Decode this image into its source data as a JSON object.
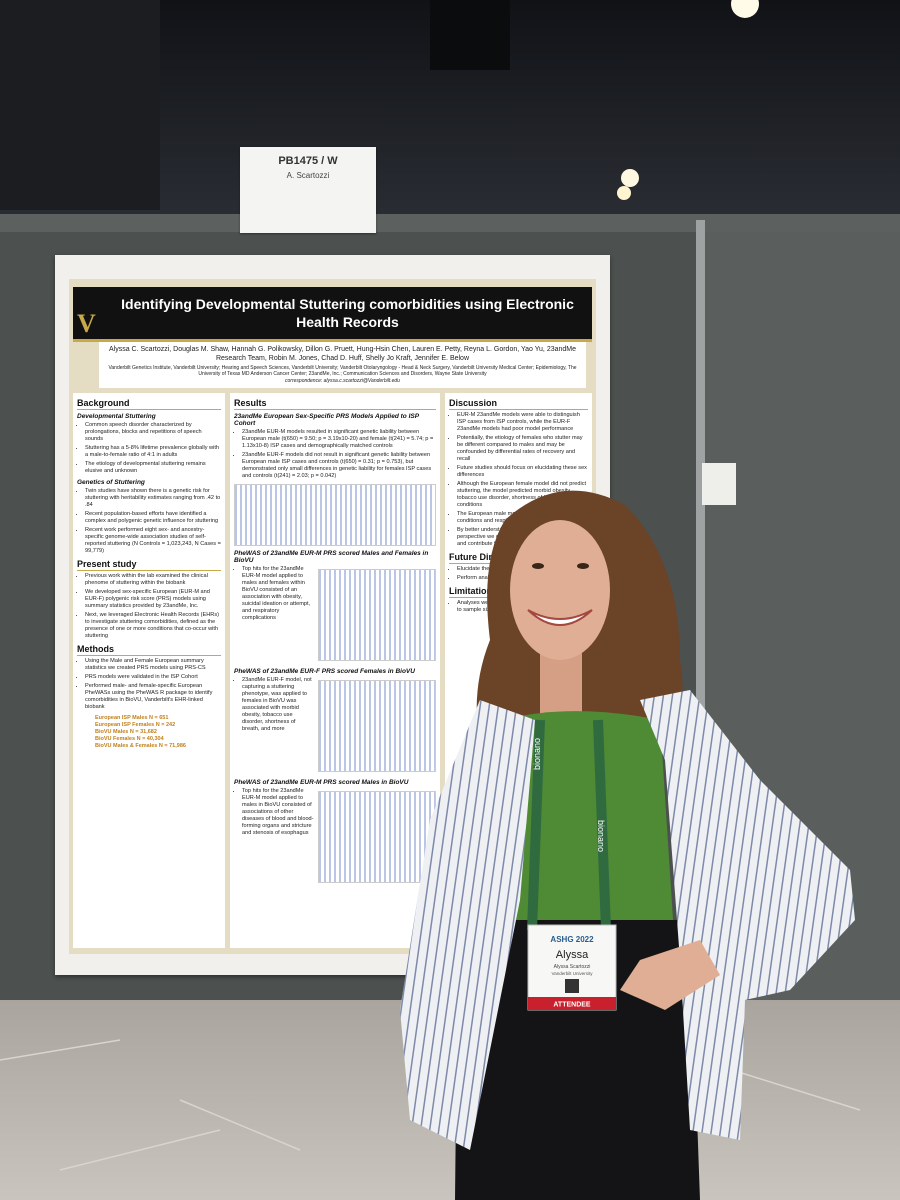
{
  "sign": {
    "code": "PB1475 / W",
    "name": "A. Scartozzi"
  },
  "poster": {
    "title": "Identifying Developmental Stuttering comorbidities using Electronic Health Records",
    "authors": "Alyssa C. Scartozzi, Douglas M. Shaw, Hannah G. Polikowsky, Dillon G. Pruett, Hung-Hsin Chen, Lauren E. Petty, Reyna L. Gordon, Yao Yu, 23andMe Research Team, Robin M. Jones, Chad D. Huff, Shelly Jo Kraft, Jennifer E. Below",
    "affiliations": "Vanderbilt Genetics Institute, Vanderbilt University; Hearing and Speech Sciences, Vanderbilt University; Vanderbilt Otolaryngology - Head & Neck Surgery, Vanderbilt University Medical Center; Epidemiology, The University of Texas MD Anderson Cancer Center; 23andMe, Inc.; Communication Sciences and Disorders, Wayne State University",
    "correspondence": "correspondence: alyssa.c.scartozzi@Vanderbilt.edu",
    "columns": [
      [
        {
          "heading": "Background",
          "sub": "Developmental Stuttering",
          "bullets": [
            "Common speech disorder characterized by prolongations, blocks and repetitions of speech sounds",
            "Stuttering has a 5-8% lifetime prevalence globally with a male-to-female ratio of 4:1 in adults",
            "The etiology of developmental stuttering remains elusive and unknown"
          ]
        },
        {
          "sub": "Genetics of Stuttering",
          "bullets": [
            "Twin studies have shown there is a genetic risk for stuttering with heritability estimates ranging from .42 to .84",
            "Recent population-based efforts have identified a complex and polygenic genetic influence for stuttering",
            "Recent work performed eight sex- and ancestry-specific genome-wide association studies of self-reported stuttering (N Controls = 1,023,243, N Cases = 99,779)"
          ]
        },
        {
          "heading": "Present study",
          "bullets": [
            "Previous work within the lab examined the clinical phenome of stuttering within the biobank",
            "We developed sex-specific European (EUR-M and EUR-F) polygenic risk score (PRS) models using summary statistics provided by 23andMe, Inc.",
            "Next, we leveraged Electronic Health Records (EHRs) to investigate stuttering comorbidities, defined as the presence of one or more conditions that co-occur with stuttering"
          ]
        },
        {
          "heading": "Methods",
          "bullets": [
            "Using the Male and Female European summary statistics we created PRS models using PRS-CS",
            "PRS models were validated in the ISP Cohort",
            "Performed male- and female-specific European PheWASs using the PheWAS R package to identify comorbidities in BioVU, Vanderbilt's EHR-linked biobank"
          ],
          "notes": [
            "European ISP Males N = 651",
            "European ISP Females N = 242",
            "BioVU Males N = 31,682",
            "BioVU Females N = 40,304",
            "BioVU Males & Females N = 71,986"
          ]
        }
      ],
      [
        {
          "heading": "Results",
          "sub": "23andMe European Sex-Specific PRS Models Applied to ISP Cohort",
          "bullets": [
            "23andMe EUR-M models resulted in significant genetic liability between European male (t(650) = 9.50; p = 3.19x10-20) and female (t(241) = 5.74; p = 1.13x10-8) ISP cases and demographically matched controls",
            "23andMe EUR-F models did not result in significant genetic liability between European male ISP cases and controls (t(650) = 0.31; p = 0.753), but demonstrated only small differences in genetic liability for females ISP cases and controls (t(241) = 2.03; p = 0.042)"
          ]
        },
        {
          "sub": "PheWAS of 23andMe EUR-M PRS scored Males and Females in BioVU",
          "bullets": [
            "Top hits for the 23andMe EUR-M model applied to males and females within BioVU consisted of an association with obesity, suicidal ideation or attempt, and respiratory complications"
          ]
        },
        {
          "sub": "PheWAS of 23andMe EUR-F PRS scored Females in BioVU",
          "bullets": [
            "23andMe EUR-F model, not capturing a stuttering phenotype, was applied to females in BioVU was associated with morbid obesity, tobacco use disorder, shortness of breath, and more"
          ]
        },
        {
          "sub": "PheWAS of 23andMe EUR-M PRS scored Males in BioVU",
          "bullets": [
            "Top hits for the 23andMe EUR-M model applied to males in BioVU consisted of associations of other diseases of blood and blood-forming organs and stricture and stenosis of esophagus"
          ]
        }
      ],
      [
        {
          "heading": "Discussion",
          "bullets": [
            "EUR-M 23andMe models were able to distinguish ISP cases from ISP controls, while the EUR-F 23andMe models had poor model performance",
            "Potentially, the etiology of females who stutter may be different compared to males and may be confounded by differential rates of recovery and recall",
            "Future studies should focus on elucidating these sex differences",
            "Although the European female model did not predict stuttering, the model predicted morbid obesity, tobacco use disorder, shortness of breath and other conditions",
            "The European male model identified comorbid conditions and respiratory complications",
            "By better understanding stuttering from a genetic perspective we can better understand the condition and contribute to future improvements"
          ]
        },
        {
          "heading": "Future Directions",
          "bullets": [
            "Elucidate the sex-specific stuttering",
            "Perform analyses in other statistics"
          ]
        },
        {
          "heading": "Limitations",
          "bullets": [
            "Analyses were restricted to European ancestry due to sample size of studies"
          ]
        }
      ]
    ]
  },
  "badge": {
    "event": "ASHG 2022",
    "first_name": "Alyssa",
    "full_name": "Alyssa Scartozzi",
    "affiliation": "Vanderbilt University",
    "role": "ATTENDEE"
  },
  "lanyard": "bionano"
}
